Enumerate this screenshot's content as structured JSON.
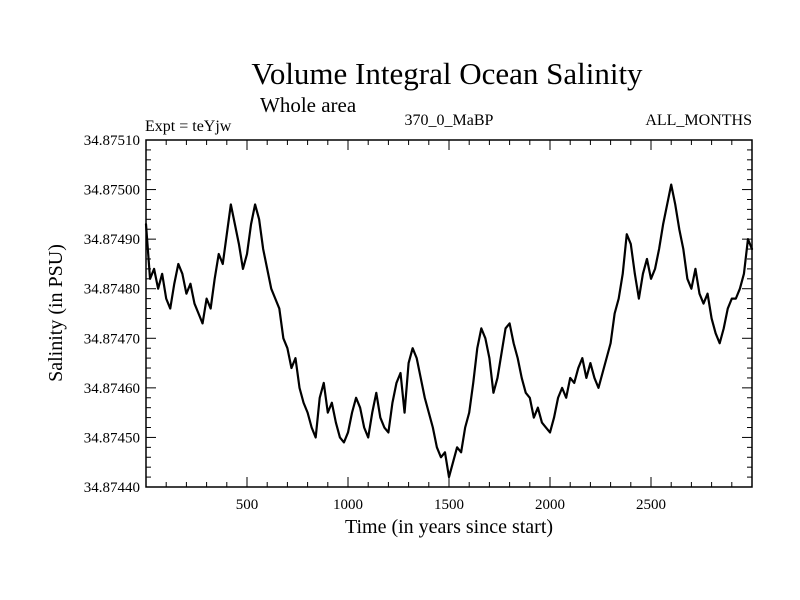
{
  "chart_data": {
    "type": "line",
    "title": "Volume Integral Ocean Salinity",
    "subtitle": "Whole area",
    "header_left": "Expt = teYjw",
    "header_center": "370_0_MaBP",
    "header_right": "ALL_MONTHS",
    "xlabel": "Time (in years since start)",
    "ylabel": "Salinity (in PSU)",
    "xlim": [
      0,
      3000
    ],
    "ylim": [
      34.8744,
      34.8751
    ],
    "x_ticks": [
      500,
      1000,
      1500,
      2000,
      2500
    ],
    "x_tick_labels": [
      "500",
      "1000",
      "1500",
      "2000",
      "2500"
    ],
    "y_ticks": [
      34.8744,
      34.8745,
      34.8746,
      34.8747,
      34.8748,
      34.8749,
      34.875,
      34.8751
    ],
    "y_tick_labels": [
      "34.87440",
      "34.87450",
      "34.87460",
      "34.87470",
      "34.87480",
      "34.87490",
      "34.87500",
      "34.87510"
    ],
    "grid": false,
    "line_color": "#000000",
    "series": [
      {
        "name": "Volume Integral Ocean Salinity",
        "x": [
          0,
          20,
          40,
          60,
          80,
          100,
          120,
          140,
          160,
          180,
          200,
          220,
          240,
          260,
          280,
          300,
          320,
          340,
          360,
          380,
          400,
          420,
          440,
          460,
          480,
          500,
          520,
          540,
          560,
          580,
          600,
          620,
          640,
          660,
          680,
          700,
          720,
          740,
          760,
          780,
          800,
          820,
          840,
          860,
          880,
          900,
          920,
          940,
          960,
          980,
          1000,
          1020,
          1040,
          1060,
          1080,
          1100,
          1120,
          1140,
          1160,
          1180,
          1200,
          1220,
          1240,
          1260,
          1280,
          1300,
          1320,
          1340,
          1360,
          1380,
          1400,
          1420,
          1440,
          1460,
          1480,
          1500,
          1520,
          1540,
          1560,
          1580,
          1600,
          1620,
          1640,
          1660,
          1680,
          1700,
          1720,
          1740,
          1760,
          1780,
          1800,
          1820,
          1840,
          1860,
          1880,
          1900,
          1920,
          1940,
          1960,
          1980,
          2000,
          2020,
          2040,
          2060,
          2080,
          2100,
          2120,
          2140,
          2160,
          2180,
          2200,
          2220,
          2240,
          2260,
          2280,
          2300,
          2320,
          2340,
          2360,
          2380,
          2400,
          2420,
          2440,
          2460,
          2480,
          2500,
          2520,
          2540,
          2560,
          2580,
          2600,
          2620,
          2640,
          2660,
          2680,
          2700,
          2720,
          2740,
          2760,
          2780,
          2800,
          2820,
          2840,
          2860,
          2880,
          2900,
          2920,
          2940,
          2960,
          2980,
          3000
        ],
        "values": [
          34.87493,
          34.87482,
          34.87484,
          34.8748,
          34.87483,
          34.87478,
          34.87476,
          34.87481,
          34.87485,
          34.87483,
          34.87479,
          34.87481,
          34.87477,
          34.87475,
          34.87473,
          34.87478,
          34.87476,
          34.87482,
          34.87487,
          34.87485,
          34.87491,
          34.87497,
          34.87493,
          34.87489,
          34.87484,
          34.87487,
          34.87493,
          34.87497,
          34.87494,
          34.87488,
          34.87484,
          34.8748,
          34.87478,
          34.87476,
          34.8747,
          34.87468,
          34.87464,
          34.87466,
          34.8746,
          34.87457,
          34.87455,
          34.87452,
          34.8745,
          34.87458,
          34.87461,
          34.87455,
          34.87457,
          34.87453,
          34.8745,
          34.87449,
          34.87451,
          34.87455,
          34.87458,
          34.87456,
          34.87452,
          34.8745,
          34.87455,
          34.87459,
          34.87454,
          34.87452,
          34.87451,
          34.87457,
          34.87461,
          34.87463,
          34.87455,
          34.87465,
          34.87468,
          34.87466,
          34.87462,
          34.87458,
          34.87455,
          34.87452,
          34.87448,
          34.87446,
          34.87447,
          34.87442,
          34.87445,
          34.87448,
          34.87447,
          34.87452,
          34.87455,
          34.87461,
          34.87468,
          34.87472,
          34.8747,
          34.87466,
          34.87459,
          34.87462,
          34.87467,
          34.87472,
          34.87473,
          34.87469,
          34.87466,
          34.87462,
          34.87459,
          34.87458,
          34.87454,
          34.87456,
          34.87453,
          34.87452,
          34.87451,
          34.87454,
          34.87458,
          34.8746,
          34.87458,
          34.87462,
          34.87461,
          34.87464,
          34.87466,
          34.87462,
          34.87465,
          34.87462,
          34.8746,
          34.87463,
          34.87466,
          34.87469,
          34.87475,
          34.87478,
          34.87483,
          34.87491,
          34.87489,
          34.87483,
          34.87478,
          34.87483,
          34.87486,
          34.87482,
          34.87484,
          34.87488,
          34.87493,
          34.87497,
          34.87501,
          34.87497,
          34.87492,
          34.87488,
          34.87482,
          34.8748,
          34.87484,
          34.87479,
          34.87477,
          34.87479,
          34.87474,
          34.87471,
          34.87469,
          34.87472,
          34.87476,
          34.87478,
          34.87478,
          34.8748,
          34.87483,
          34.8749,
          34.87488
        ]
      }
    ]
  }
}
